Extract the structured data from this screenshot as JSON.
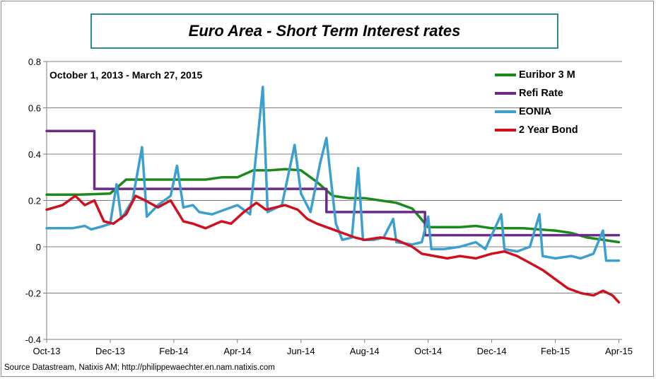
{
  "title": "Euro Area - Short Term Interest rates",
  "subtitle": "October 1, 2013 - March 27, 2015",
  "source": "Source Datastream, Natixis AM; http://philippewaechter.en.nam.natixis.com",
  "chart_data": {
    "type": "line",
    "title": "Euro Area - Short Term Interest rates",
    "xlabel": "",
    "ylabel": "",
    "ylim": [
      -0.4,
      0.8
    ],
    "xlim": [
      0,
      18.1
    ],
    "grid": true,
    "legend_position": "top-right",
    "x_tick_values": [
      0,
      2,
      4,
      6,
      8,
      10,
      12,
      14,
      16,
      18
    ],
    "x_tick_labels": [
      "Oct-13",
      "Dec-13",
      "Feb-14",
      "Apr-14",
      "Jun-14",
      "Aug-14",
      "Oct-14",
      "Dec-14",
      "Feb-15",
      "Apr-15"
    ],
    "y_tick_values": [
      -0.4,
      -0.2,
      0,
      0.2,
      0.4,
      0.6,
      0.8
    ],
    "y_tick_labels": [
      "-0.4",
      "-0.2",
      "0",
      "0.2",
      "0.4",
      "0.6",
      "0.8"
    ],
    "series": [
      {
        "name": "Euribor 3 M",
        "color": "#1a8a1a",
        "points": [
          [
            0,
            0.225
          ],
          [
            1,
            0.225
          ],
          [
            2,
            0.23
          ],
          [
            2.5,
            0.29
          ],
          [
            3,
            0.29
          ],
          [
            4,
            0.29
          ],
          [
            5,
            0.29
          ],
          [
            5.5,
            0.3
          ],
          [
            6,
            0.3
          ],
          [
            6.5,
            0.33
          ],
          [
            7,
            0.33
          ],
          [
            7.5,
            0.335
          ],
          [
            8,
            0.33
          ],
          [
            8.5,
            0.28
          ],
          [
            9,
            0.22
          ],
          [
            9.5,
            0.21
          ],
          [
            10,
            0.21
          ],
          [
            10.5,
            0.2
          ],
          [
            11,
            0.19
          ],
          [
            11.5,
            0.165
          ],
          [
            12,
            0.085
          ],
          [
            13,
            0.085
          ],
          [
            13.5,
            0.09
          ],
          [
            14,
            0.08
          ],
          [
            15,
            0.08
          ],
          [
            16,
            0.07
          ],
          [
            16.5,
            0.06
          ],
          [
            17,
            0.04
          ],
          [
            17.5,
            0.03
          ],
          [
            18,
            0.02
          ]
        ]
      },
      {
        "name": "Refi Rate",
        "color": "#6a2b8a",
        "points": [
          [
            0,
            0.5
          ],
          [
            1.5,
            0.5
          ],
          [
            1.5,
            0.25
          ],
          [
            8.8,
            0.25
          ],
          [
            8.8,
            0.15
          ],
          [
            11.9,
            0.15
          ],
          [
            11.9,
            0.05
          ],
          [
            18,
            0.05
          ]
        ]
      },
      {
        "name": "EONIA",
        "color": "#3ba0cf",
        "points": [
          [
            0,
            0.08
          ],
          [
            0.8,
            0.08
          ],
          [
            1.2,
            0.09
          ],
          [
            1.4,
            0.075
          ],
          [
            1.8,
            0.09
          ],
          [
            2,
            0.1
          ],
          [
            2.2,
            0.27
          ],
          [
            2.35,
            0.12
          ],
          [
            2.7,
            0.2
          ],
          [
            3.0,
            0.43
          ],
          [
            3.15,
            0.13
          ],
          [
            3.5,
            0.18
          ],
          [
            3.9,
            0.22
          ],
          [
            4.1,
            0.35
          ],
          [
            4.3,
            0.17
          ],
          [
            4.6,
            0.18
          ],
          [
            4.8,
            0.15
          ],
          [
            5.2,
            0.14
          ],
          [
            5.6,
            0.16
          ],
          [
            6.0,
            0.18
          ],
          [
            6.4,
            0.14
          ],
          [
            6.8,
            0.69
          ],
          [
            6.95,
            0.15
          ],
          [
            7.4,
            0.18
          ],
          [
            7.8,
            0.44
          ],
          [
            8.0,
            0.23
          ],
          [
            8.3,
            0.15
          ],
          [
            8.6,
            0.36
          ],
          [
            8.8,
            0.47
          ],
          [
            8.95,
            0.28
          ],
          [
            9.1,
            0.1
          ],
          [
            9.3,
            0.03
          ],
          [
            9.6,
            0.04
          ],
          [
            9.8,
            0.34
          ],
          [
            9.95,
            0.03
          ],
          [
            10.3,
            0.03
          ],
          [
            10.6,
            0.04
          ],
          [
            10.9,
            0.12
          ],
          [
            11.0,
            0.02
          ],
          [
            11.5,
            0.01
          ],
          [
            11.8,
            0.02
          ],
          [
            12.0,
            0.13
          ],
          [
            12.1,
            -0.01
          ],
          [
            12.5,
            -0.01
          ],
          [
            13.0,
            0.0
          ],
          [
            13.5,
            0.02
          ],
          [
            13.8,
            -0.01
          ],
          [
            14.3,
            0.14
          ],
          [
            14.4,
            -0.01
          ],
          [
            14.8,
            -0.02
          ],
          [
            15.2,
            0.0
          ],
          [
            15.5,
            0.14
          ],
          [
            15.6,
            -0.04
          ],
          [
            16.0,
            -0.05
          ],
          [
            16.5,
            -0.04
          ],
          [
            16.8,
            -0.05
          ],
          [
            17.2,
            -0.03
          ],
          [
            17.5,
            0.07
          ],
          [
            17.6,
            -0.06
          ],
          [
            18,
            -0.06
          ]
        ]
      },
      {
        "name": "2 Year Bond",
        "color": "#d0101f",
        "points": [
          [
            0,
            0.16
          ],
          [
            0.5,
            0.18
          ],
          [
            0.9,
            0.22
          ],
          [
            1.2,
            0.18
          ],
          [
            1.5,
            0.2
          ],
          [
            1.8,
            0.11
          ],
          [
            2.1,
            0.1
          ],
          [
            2.5,
            0.14
          ],
          [
            2.8,
            0.22
          ],
          [
            3.1,
            0.2
          ],
          [
            3.5,
            0.17
          ],
          [
            3.9,
            0.2
          ],
          [
            4.3,
            0.11
          ],
          [
            4.6,
            0.1
          ],
          [
            5.0,
            0.08
          ],
          [
            5.5,
            0.11
          ],
          [
            5.8,
            0.1
          ],
          [
            6.2,
            0.15
          ],
          [
            6.6,
            0.19
          ],
          [
            6.9,
            0.16
          ],
          [
            7.2,
            0.17
          ],
          [
            7.5,
            0.18
          ],
          [
            7.9,
            0.16
          ],
          [
            8.2,
            0.12
          ],
          [
            8.5,
            0.1
          ],
          [
            8.9,
            0.08
          ],
          [
            9.3,
            0.06
          ],
          [
            9.7,
            0.04
          ],
          [
            10.0,
            0.03
          ],
          [
            10.5,
            0.04
          ],
          [
            11.0,
            0.03
          ],
          [
            11.5,
            0.0
          ],
          [
            11.8,
            -0.03
          ],
          [
            12.2,
            -0.04
          ],
          [
            12.6,
            -0.05
          ],
          [
            13.0,
            -0.04
          ],
          [
            13.5,
            -0.05
          ],
          [
            14.0,
            -0.03
          ],
          [
            14.4,
            -0.02
          ],
          [
            14.8,
            -0.04
          ],
          [
            15.2,
            -0.07
          ],
          [
            15.6,
            -0.1
          ],
          [
            16.0,
            -0.14
          ],
          [
            16.4,
            -0.18
          ],
          [
            16.8,
            -0.2
          ],
          [
            17.2,
            -0.21
          ],
          [
            17.5,
            -0.19
          ],
          [
            17.8,
            -0.21
          ],
          [
            18,
            -0.24
          ]
        ]
      }
    ]
  }
}
